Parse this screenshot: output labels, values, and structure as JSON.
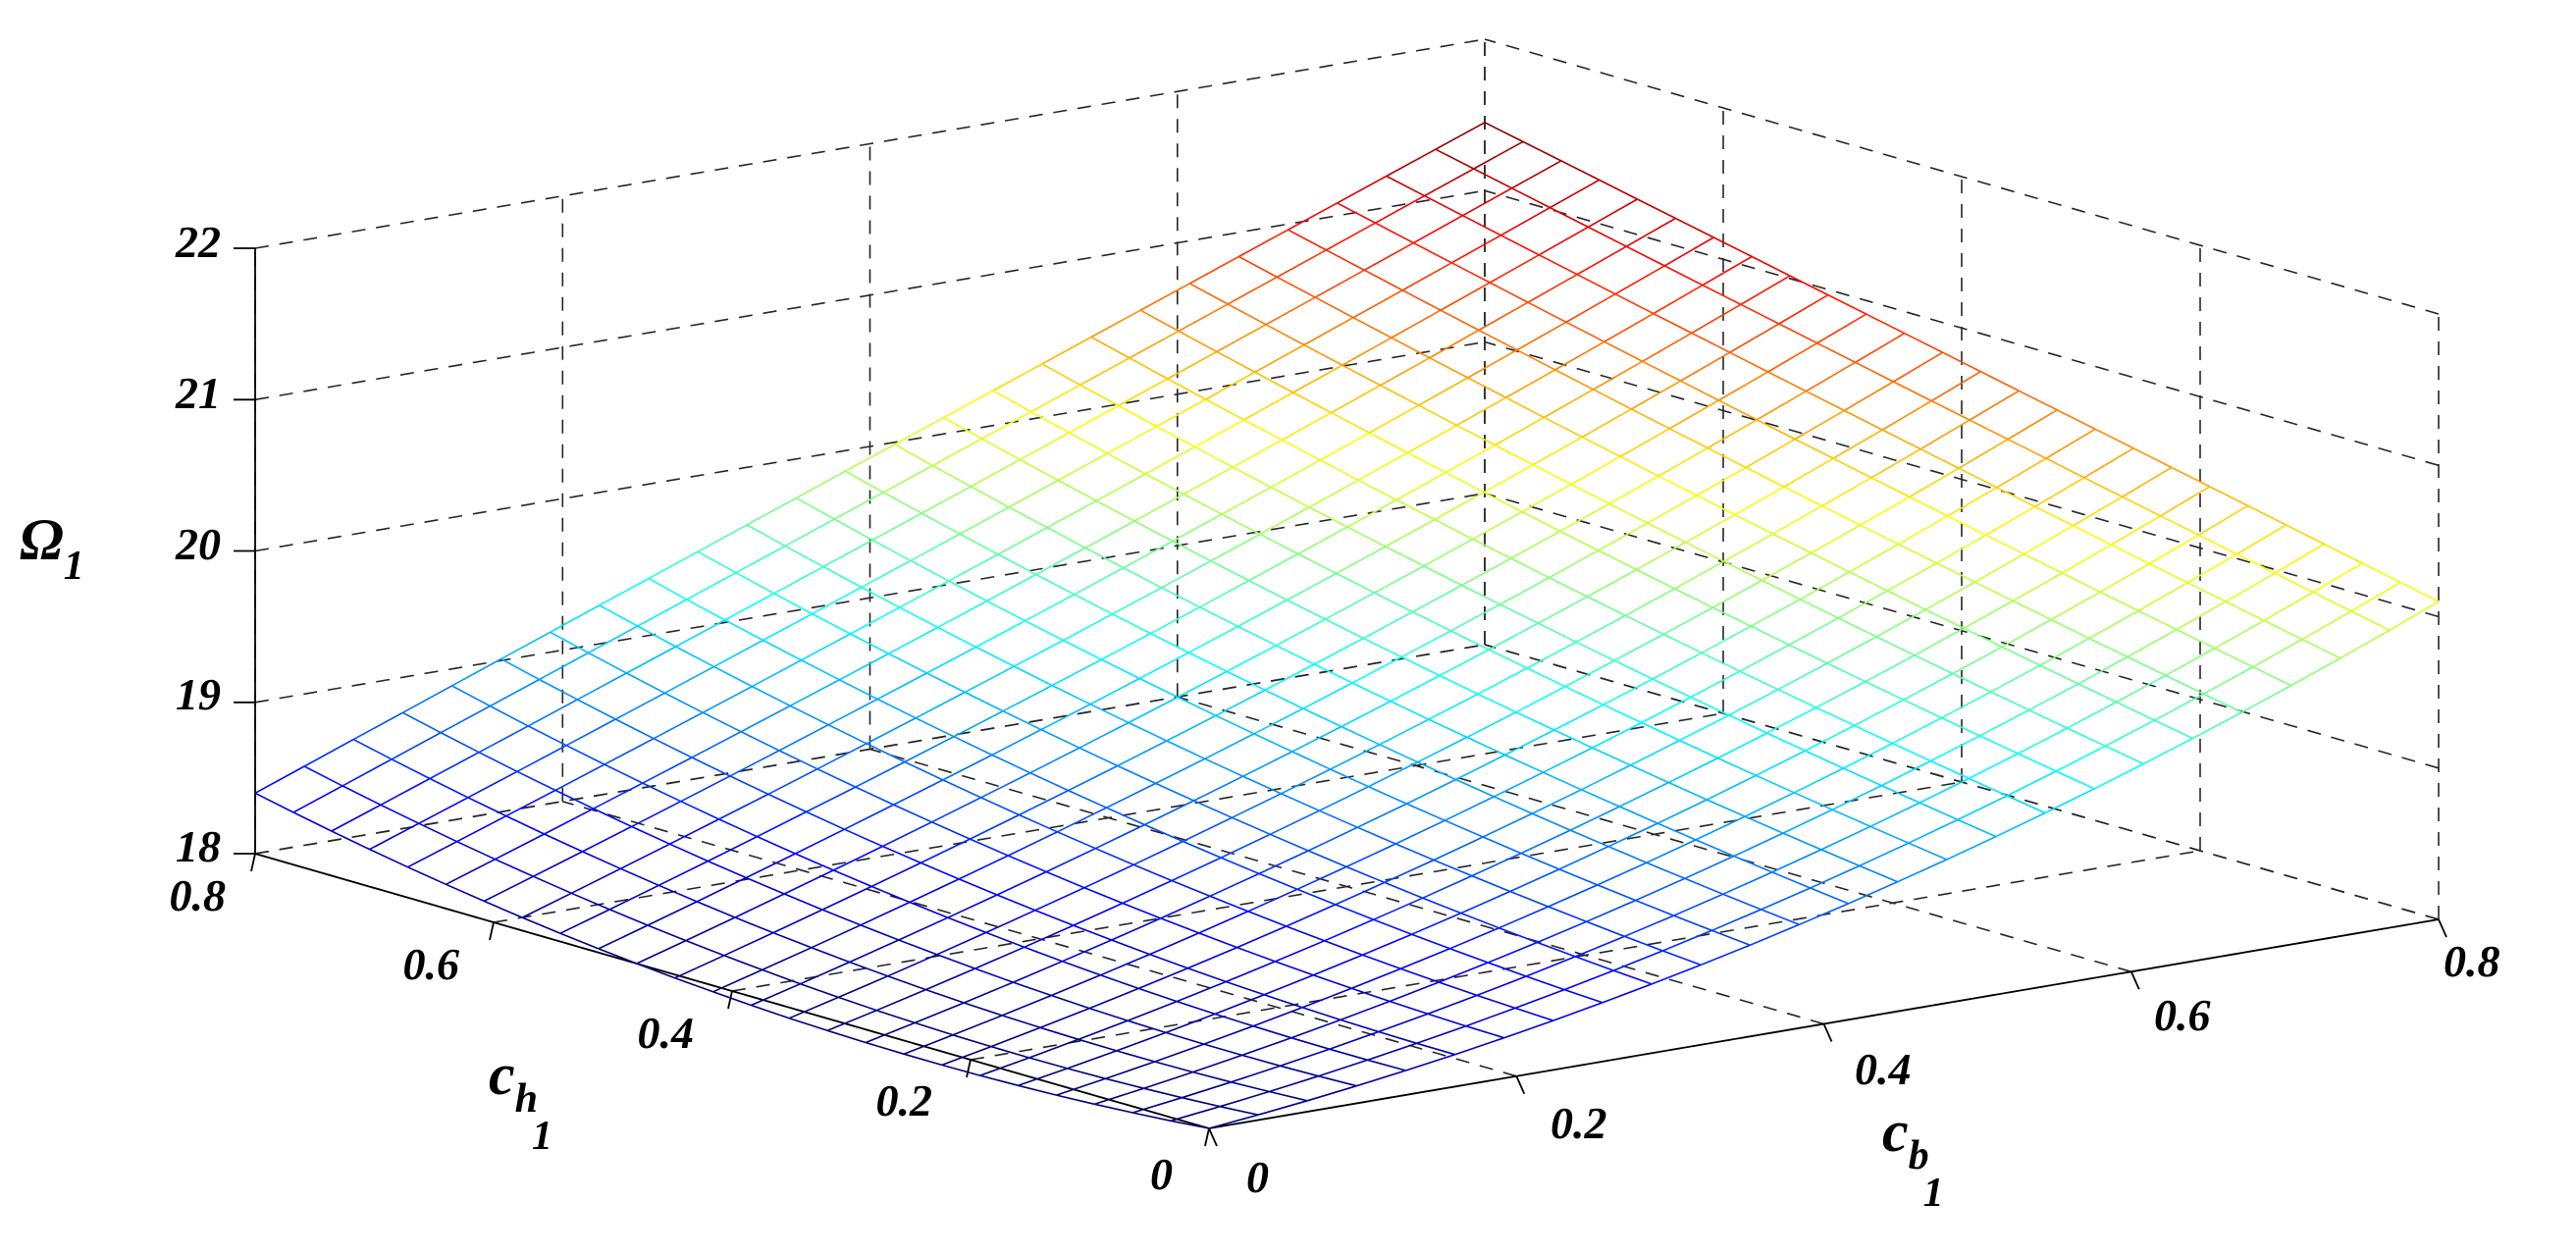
{
  "chart_data": {
    "type": "surface-mesh",
    "colormap": "jet",
    "grid": true,
    "x_axis": {
      "symbol": "c",
      "subscript": "b",
      "index": "1",
      "range": [
        0,
        0.8
      ],
      "ticks": [
        "0",
        "0.2",
        "0.4",
        "0.6",
        "0.8"
      ]
    },
    "y_axis": {
      "symbol": "c",
      "subscript": "h",
      "index": "1",
      "range": [
        0,
        0.8
      ],
      "ticks": [
        "0",
        "0.2",
        "0.4",
        "0.6",
        "0.8"
      ]
    },
    "z_axis": {
      "symbol": "Ω",
      "index": "1",
      "range": [
        18,
        22
      ],
      "ticks": [
        "18",
        "19",
        "20",
        "21",
        "22"
      ]
    },
    "mesh_resolution": 25,
    "corner_values": {
      "cb0_ch0": 18.0,
      "cb08_ch0": 20.1,
      "cb0_ch08": 18.4,
      "cb08_ch08": 21.45
    }
  }
}
